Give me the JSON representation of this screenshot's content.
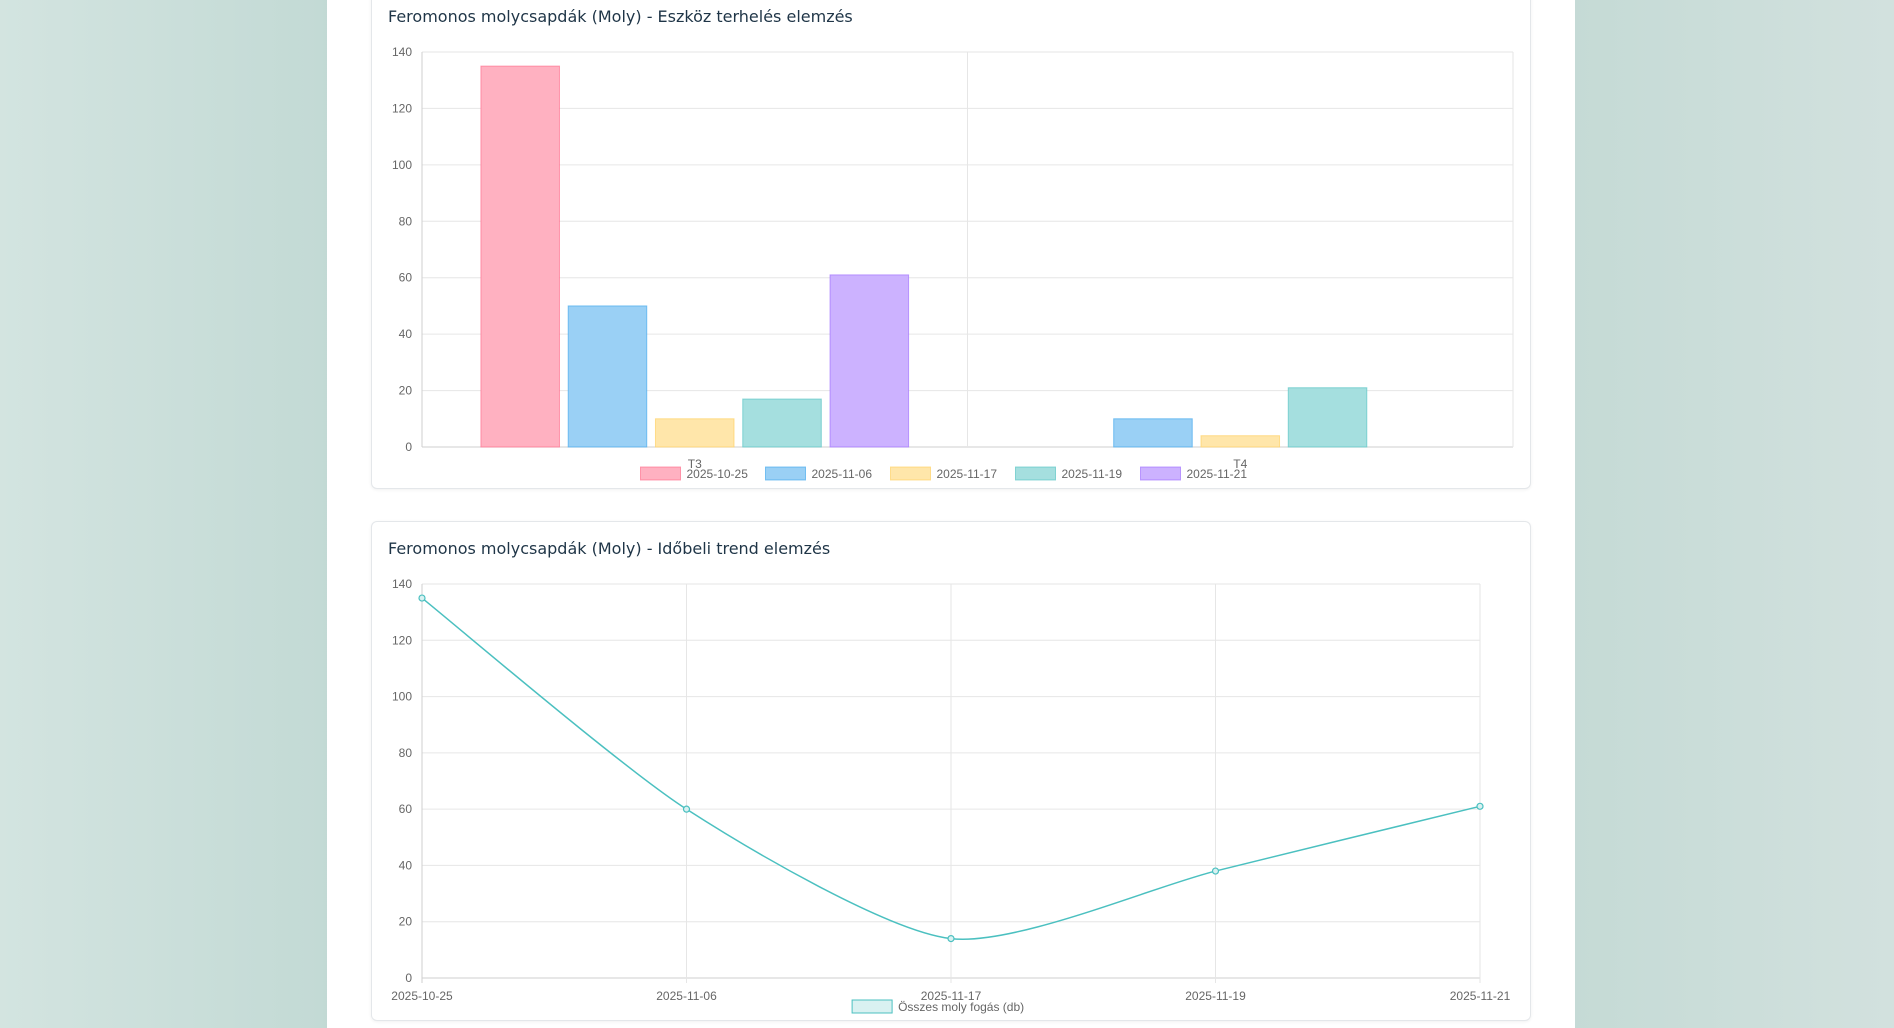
{
  "charts": {
    "bar": {
      "title": "Feromonos molycsapdák (Moly) - Eszköz terhelés elemzés"
    },
    "line": {
      "title": "Feromonos molycsapdák (Moly) - Időbeli trend elemzés"
    }
  },
  "chart_data": [
    {
      "type": "bar",
      "title": "Feromonos molycsapdák (Moly) - Eszköz terhelés elemzés",
      "categories": [
        "T3",
        "T4"
      ],
      "series": [
        {
          "name": "2025-10-25",
          "values": [
            135,
            0
          ],
          "color": "#ffb1c1",
          "border": "#ff6384"
        },
        {
          "name": "2025-11-06",
          "values": [
            50,
            10
          ],
          "color": "#9ad0f5",
          "border": "#36a2eb"
        },
        {
          "name": "2025-11-17",
          "values": [
            10,
            4
          ],
          "color": "#ffe6aa",
          "border": "#ffcd56"
        },
        {
          "name": "2025-11-19",
          "values": [
            17,
            21
          ],
          "color": "#a5dfdf",
          "border": "#4bc0c0"
        },
        {
          "name": "2025-11-21",
          "values": [
            61,
            0
          ],
          "color": "#ccb2ff",
          "border": "#9966ff"
        }
      ],
      "ylim": [
        0,
        140
      ],
      "yticks": [
        0,
        20,
        40,
        60,
        80,
        100,
        120,
        140
      ],
      "legend": "bottom",
      "grid": true
    },
    {
      "type": "line",
      "title": "Feromonos molycsapdák (Moly) - Időbeli trend elemzés",
      "x": [
        "2025-10-25",
        "2025-11-06",
        "2025-11-17",
        "2025-11-19",
        "2025-11-21"
      ],
      "series": [
        {
          "name": "Összes moly fogás (db)",
          "values": [
            135,
            60,
            14,
            38,
            61
          ],
          "color": "#4bc0c0"
        }
      ],
      "ylim": [
        0,
        140
      ],
      "yticks": [
        0,
        20,
        40,
        60,
        80,
        100,
        120,
        140
      ],
      "legend": "bottom",
      "grid": true
    }
  ]
}
